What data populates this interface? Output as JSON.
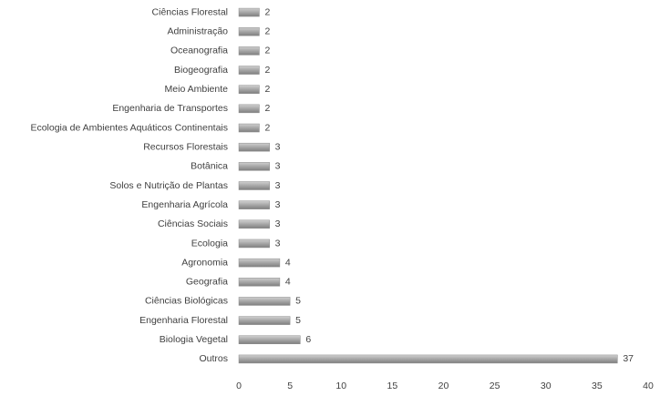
{
  "chart_data": {
    "type": "bar",
    "horizontal": true,
    "categories": [
      "Ciências Florestal",
      "Administração",
      "Oceanografia",
      "Biogeografia",
      "Meio Ambiente",
      "Engenharia de Transportes",
      "Ecologia de Ambientes Aquáticos Continentais",
      "Recursos Florestais",
      "Botânica",
      "Solos e Nutrição de Plantas",
      "Engenharia Agrícola",
      "Ciências Sociais",
      "Ecologia",
      "Agronomia",
      "Geografia",
      "Ciências Biológicas",
      "Engenharia Florestal",
      "Biologia Vegetal",
      "Outros"
    ],
    "values": [
      2,
      2,
      2,
      2,
      2,
      2,
      2,
      3,
      3,
      3,
      3,
      3,
      3,
      4,
      4,
      5,
      5,
      6,
      37
    ],
    "color": "#a6a6a6",
    "xlim": [
      0,
      40
    ],
    "xticks": [
      0,
      5,
      10,
      15,
      20,
      25,
      30,
      35,
      40
    ],
    "grid": false
  }
}
